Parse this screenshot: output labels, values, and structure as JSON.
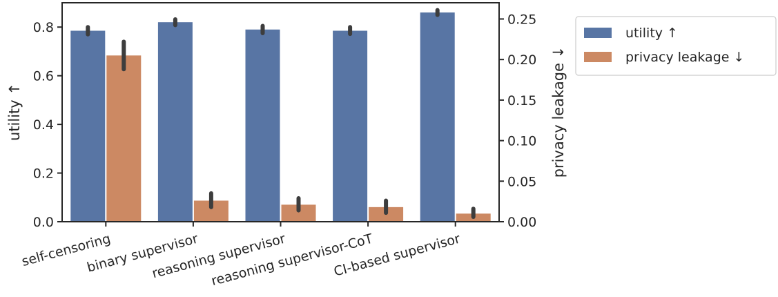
{
  "chart_data": {
    "type": "bar",
    "title": "",
    "xlabel": "",
    "ylabel": "utility ↑",
    "y2label": "privacy leakage ↓",
    "categories": [
      "self-censoring",
      "binary supervisor",
      "reasoning supervisor",
      "reasoning supervisor-CoT",
      "CI-based supervisor"
    ],
    "ylim": [
      0,
      0.9
    ],
    "y2lim": [
      0,
      0.27
    ],
    "yticks": [
      "0.0",
      "0.2",
      "0.4",
      "0.6",
      "0.8"
    ],
    "y2ticks": [
      "0.00",
      "0.05",
      "0.10",
      "0.15",
      "0.20",
      "0.25"
    ],
    "legend_position": "outside-top-right",
    "grid": false,
    "series": [
      {
        "name": "utility ↑",
        "axis": "left",
        "color": "#5875a4",
        "values": [
          0.785,
          0.82,
          0.79,
          0.785,
          0.86
        ],
        "err_low": [
          0.77,
          0.808,
          0.775,
          0.772,
          0.85
        ],
        "err_high": [
          0.8,
          0.832,
          0.805,
          0.8,
          0.87
        ]
      },
      {
        "name": "privacy leakage ↓",
        "axis": "right",
        "color": "#cc8963",
        "values": [
          0.205,
          0.026,
          0.021,
          0.018,
          0.01
        ],
        "err_low": [
          0.188,
          0.018,
          0.014,
          0.011,
          0.006
        ],
        "err_high": [
          0.222,
          0.035,
          0.029,
          0.026,
          0.016
        ]
      }
    ]
  }
}
